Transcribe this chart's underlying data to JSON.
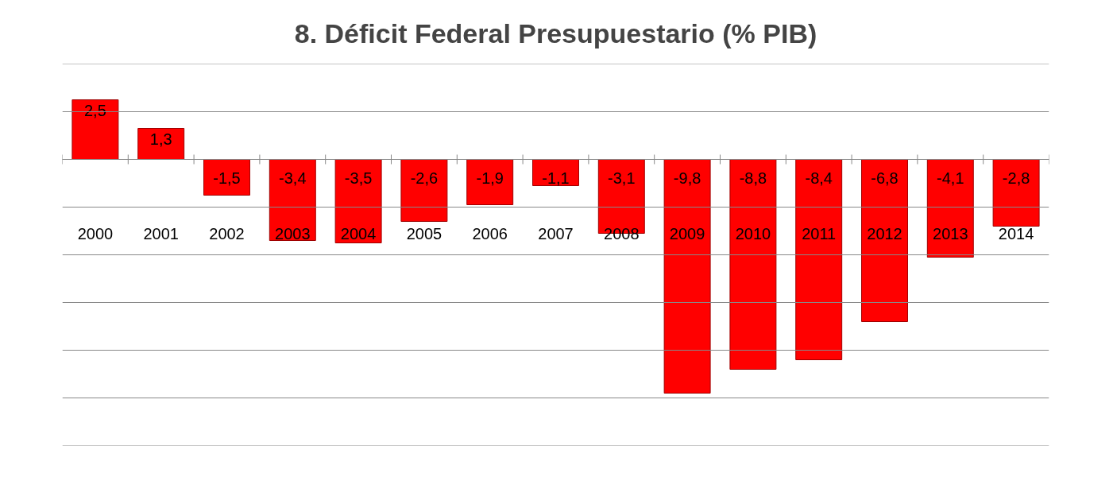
{
  "chart_data": {
    "type": "bar",
    "title": "8. Déficit Federal Presupuestario (% PIB)",
    "categories": [
      "2000",
      "2001",
      "2002",
      "2003",
      "2004",
      "2005",
      "2006",
      "2007",
      "2008",
      "2009",
      "2010",
      "2011",
      "2012",
      "2013",
      "2014"
    ],
    "values": [
      2.5,
      1.3,
      -1.5,
      -3.4,
      -3.5,
      -2.6,
      -1.9,
      -1.1,
      -3.1,
      -9.8,
      -8.8,
      -8.4,
      -6.8,
      -4.1,
      -2.8
    ],
    "value_labels": [
      "2,5",
      "1,3",
      "-1,5",
      "-3,4",
      "-3,5",
      "-2,6",
      "-1,9",
      "-1,1",
      "-3,1",
      "-9,8",
      "-8,8",
      "-8,4",
      "-6,8",
      "-4,1",
      "-2,8"
    ],
    "color": "#ff0000",
    "ylim": [
      -12,
      4
    ],
    "yticks": [
      {
        "value": 4,
        "label": null
      },
      {
        "value": 2,
        "label": null
      },
      {
        "value": 0,
        "label": null
      },
      {
        "value": -2,
        "label": null
      },
      {
        "value": -4,
        "label": null
      },
      {
        "value": -6,
        "label": null
      },
      {
        "value": -8,
        "label": null
      },
      {
        "value": -10,
        "label": null
      },
      {
        "value": -12,
        "label": null
      }
    ],
    "grid": "y",
    "tick_labels": "x"
  }
}
